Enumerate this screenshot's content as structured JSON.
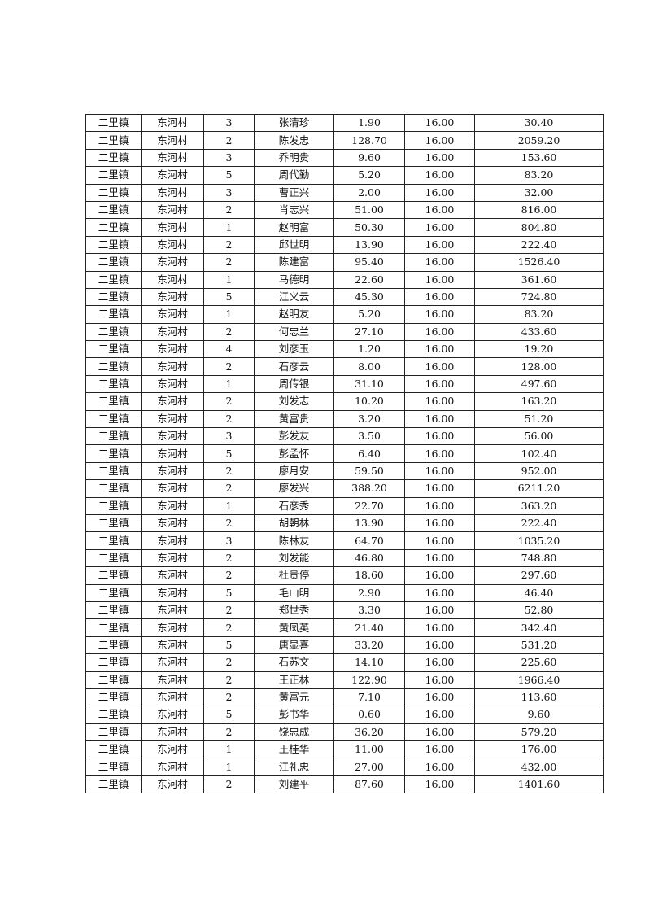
{
  "table": {
    "rows": [
      [
        "二里镇",
        "东河村",
        "3",
        "张清珍",
        "1.90",
        "16.00",
        "30.40"
      ],
      [
        "二里镇",
        "东河村",
        "2",
        "陈发忠",
        "128.70",
        "16.00",
        "2059.20"
      ],
      [
        "二里镇",
        "东河村",
        "3",
        "乔明贵",
        "9.60",
        "16.00",
        "153.60"
      ],
      [
        "二里镇",
        "东河村",
        "5",
        "周代勤",
        "5.20",
        "16.00",
        "83.20"
      ],
      [
        "二里镇",
        "东河村",
        "3",
        "曹正兴",
        "2.00",
        "16.00",
        "32.00"
      ],
      [
        "二里镇",
        "东河村",
        "2",
        "肖志兴",
        "51.00",
        "16.00",
        "816.00"
      ],
      [
        "二里镇",
        "东河村",
        "1",
        "赵明富",
        "50.30",
        "16.00",
        "804.80"
      ],
      [
        "二里镇",
        "东河村",
        "2",
        "邱世明",
        "13.90",
        "16.00",
        "222.40"
      ],
      [
        "二里镇",
        "东河村",
        "2",
        "陈建富",
        "95.40",
        "16.00",
        "1526.40"
      ],
      [
        "二里镇",
        "东河村",
        "1",
        "马德明",
        "22.60",
        "16.00",
        "361.60"
      ],
      [
        "二里镇",
        "东河村",
        "5",
        "江义云",
        "45.30",
        "16.00",
        "724.80"
      ],
      [
        "二里镇",
        "东河村",
        "1",
        "赵明友",
        "5.20",
        "16.00",
        "83.20"
      ],
      [
        "二里镇",
        "东河村",
        "2",
        "何忠兰",
        "27.10",
        "16.00",
        "433.60"
      ],
      [
        "二里镇",
        "东河村",
        "4",
        "刘彦玉",
        "1.20",
        "16.00",
        "19.20"
      ],
      [
        "二里镇",
        "东河村",
        "2",
        "石彦云",
        "8.00",
        "16.00",
        "128.00"
      ],
      [
        "二里镇",
        "东河村",
        "1",
        "周传银",
        "31.10",
        "16.00",
        "497.60"
      ],
      [
        "二里镇",
        "东河村",
        "2",
        "刘发志",
        "10.20",
        "16.00",
        "163.20"
      ],
      [
        "二里镇",
        "东河村",
        "2",
        "黄富贵",
        "3.20",
        "16.00",
        "51.20"
      ],
      [
        "二里镇",
        "东河村",
        "3",
        "彭发友",
        "3.50",
        "16.00",
        "56.00"
      ],
      [
        "二里镇",
        "东河村",
        "5",
        "彭孟怀",
        "6.40",
        "16.00",
        "102.40"
      ],
      [
        "二里镇",
        "东河村",
        "2",
        "廖月安",
        "59.50",
        "16.00",
        "952.00"
      ],
      [
        "二里镇",
        "东河村",
        "2",
        "廖发兴",
        "388.20",
        "16.00",
        "6211.20"
      ],
      [
        "二里镇",
        "东河村",
        "1",
        "石彦秀",
        "22.70",
        "16.00",
        "363.20"
      ],
      [
        "二里镇",
        "东河村",
        "2",
        "胡朝林",
        "13.90",
        "16.00",
        "222.40"
      ],
      [
        "二里镇",
        "东河村",
        "3",
        "陈林友",
        "64.70",
        "16.00",
        "1035.20"
      ],
      [
        "二里镇",
        "东河村",
        "2",
        "刘发能",
        "46.80",
        "16.00",
        "748.80"
      ],
      [
        "二里镇",
        "东河村",
        "2",
        "杜贵停",
        "18.60",
        "16.00",
        "297.60"
      ],
      [
        "二里镇",
        "东河村",
        "5",
        "毛山明",
        "2.90",
        "16.00",
        "46.40"
      ],
      [
        "二里镇",
        "东河村",
        "2",
        "郑世秀",
        "3.30",
        "16.00",
        "52.80"
      ],
      [
        "二里镇",
        "东河村",
        "2",
        "黄凤英",
        "21.40",
        "16.00",
        "342.40"
      ],
      [
        "二里镇",
        "东河村",
        "5",
        "唐显喜",
        "33.20",
        "16.00",
        "531.20"
      ],
      [
        "二里镇",
        "东河村",
        "2",
        "石苏文",
        "14.10",
        "16.00",
        "225.60"
      ],
      [
        "二里镇",
        "东河村",
        "2",
        "王正林",
        "122.90",
        "16.00",
        "1966.40"
      ],
      [
        "二里镇",
        "东河村",
        "2",
        "黄富元",
        "7.10",
        "16.00",
        "113.60"
      ],
      [
        "二里镇",
        "东河村",
        "5",
        "彭书华",
        "0.60",
        "16.00",
        "9.60"
      ],
      [
        "二里镇",
        "东河村",
        "2",
        "饶忠成",
        "36.20",
        "16.00",
        "579.20"
      ],
      [
        "二里镇",
        "东河村",
        "1",
        "王桂华",
        "11.00",
        "16.00",
        "176.00"
      ],
      [
        "二里镇",
        "东河村",
        "1",
        "江礼忠",
        "27.00",
        "16.00",
        "432.00"
      ],
      [
        "二里镇",
        "东河村",
        "2",
        "刘建平",
        "87.60",
        "16.00",
        "1401.60"
      ]
    ]
  }
}
